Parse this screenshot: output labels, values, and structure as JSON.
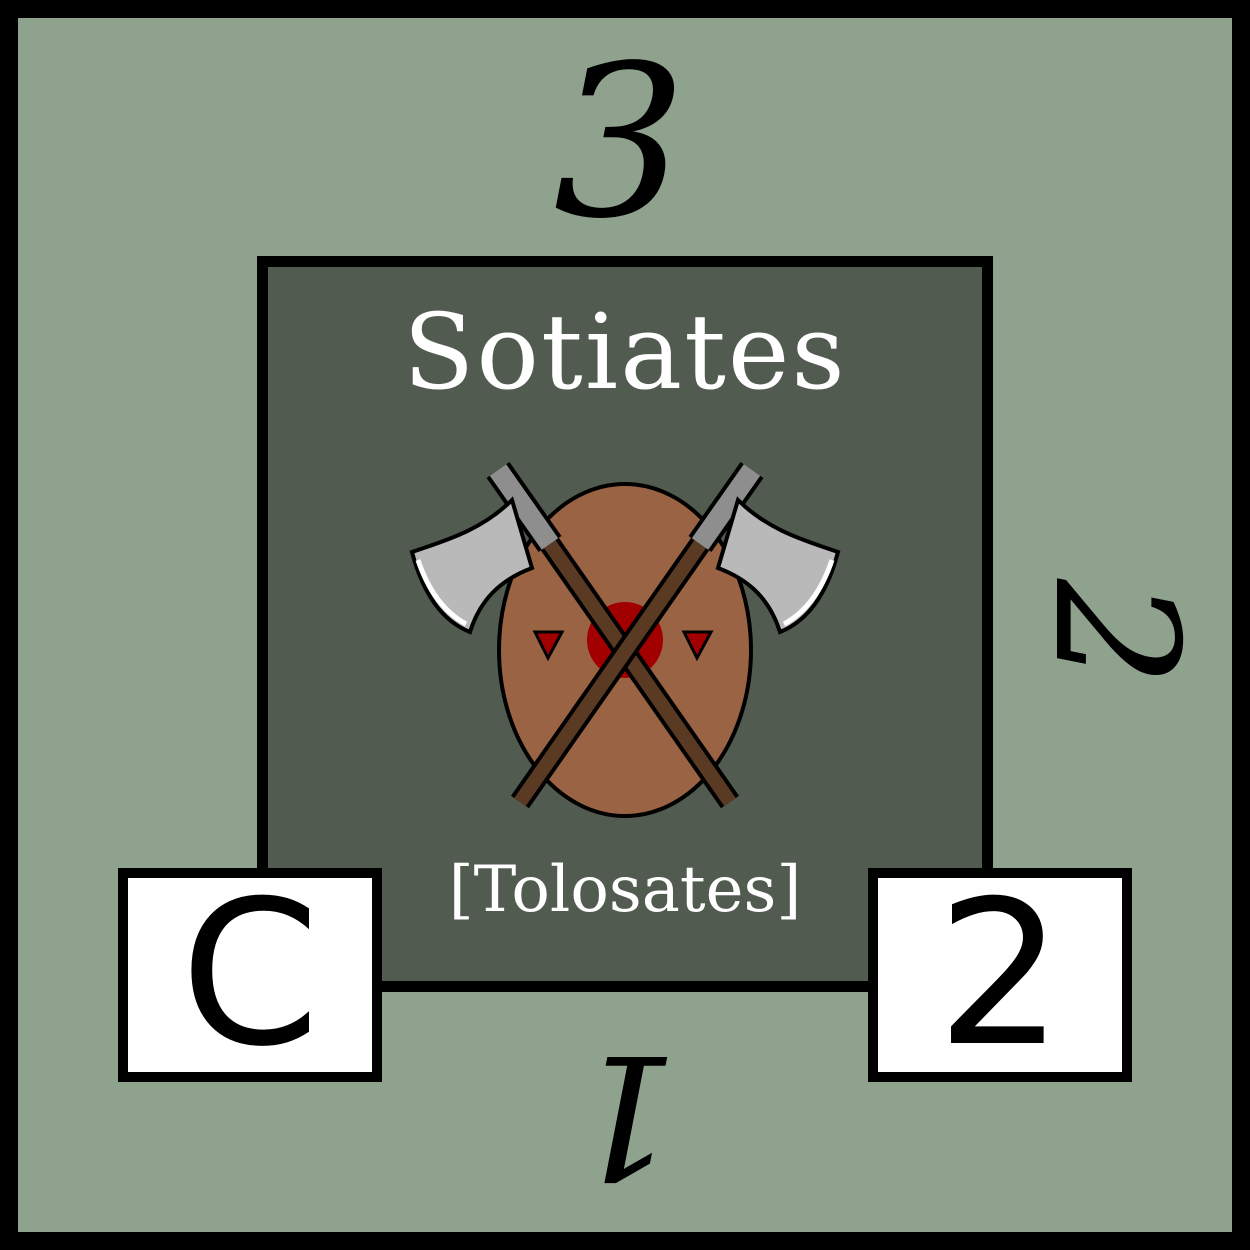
{
  "card": {
    "title": "Sotiates",
    "subtitle": "[Tolosates]",
    "edge_numbers": {
      "top": "3",
      "right": "2",
      "bottom": "1"
    },
    "corner_left": "C",
    "corner_right": "2",
    "emblem": {
      "icon": "crossed-axes-over-shield-icon"
    },
    "colors": {
      "background": "#8fa28e",
      "panel": "#525b50",
      "shield": "#9a6344",
      "shield_boss": "#a20000",
      "axe_blade": "#b9b9b9",
      "axe_handle": "#5b3a24",
      "text_light": "#ffffff"
    }
  }
}
